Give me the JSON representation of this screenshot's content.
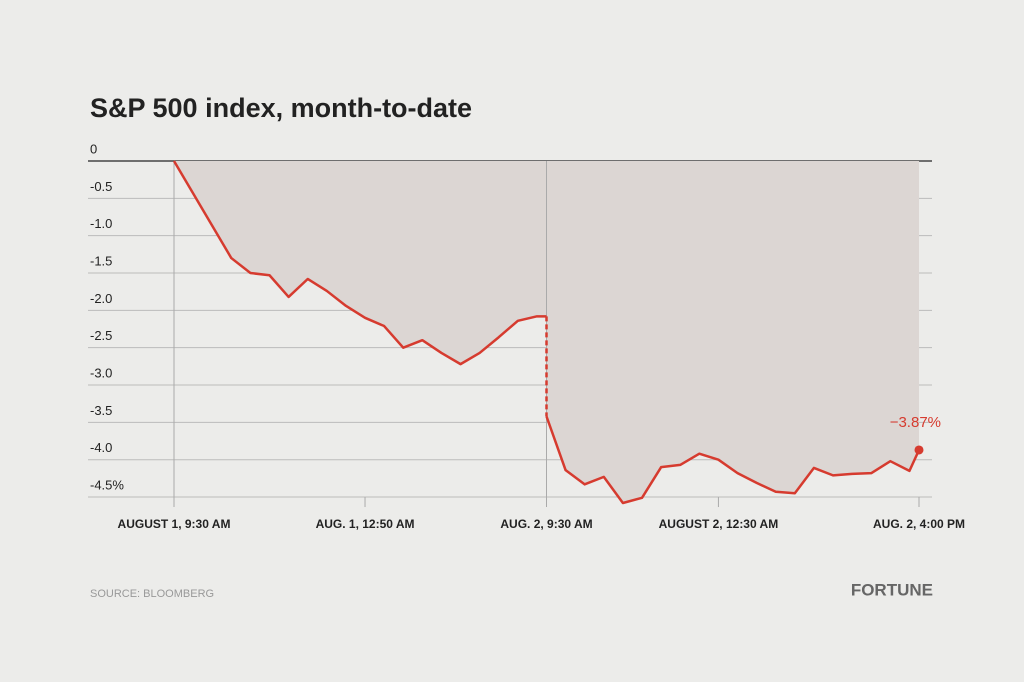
{
  "chart_data": {
    "type": "line",
    "title": "S&P 500 index, month-to-date",
    "source": "SOURCE: BLOOMBERG",
    "brand": "FORTUNE",
    "x": [
      0,
      60,
      80,
      100,
      120,
      140,
      160,
      180,
      200,
      220,
      240,
      260,
      280,
      300,
      320,
      340,
      360,
      380,
      390,
      390,
      410,
      430,
      450,
      470,
      490,
      510,
      530,
      550,
      570,
      590,
      610,
      630,
      650,
      670,
      690,
      710,
      730,
      750,
      770,
      780
    ],
    "xlim": [
      0,
      780
    ],
    "xticks": [
      {
        "value": 0,
        "label": "AUGUST 1, 9:30 AM"
      },
      {
        "value": 200,
        "label": "AUG. 1, 12:50 AM"
      },
      {
        "value": 390,
        "label": "AUG. 2, 9:30 AM"
      },
      {
        "value": 570,
        "label": "AUGUST 2, 12:30 AM"
      },
      {
        "value": 780,
        "label": "AUG. 2, 4:00 PM"
      }
    ],
    "series": [
      {
        "color": "#d63b2f",
        "fill": "#dcd6d3",
        "values": [
          0,
          -1.3,
          -1.5,
          -1.53,
          -1.82,
          -1.58,
          -1.74,
          -1.94,
          -2.1,
          -2.21,
          -2.5,
          -2.4,
          -2.57,
          -2.72,
          -2.57,
          -2.36,
          -2.14,
          -2.08,
          -2.08,
          -3.42,
          -4.14,
          -4.33,
          -4.23,
          -4.58,
          -4.51,
          -4.1,
          -4.07,
          -3.92,
          -4.0,
          -4.18,
          -4.31,
          -4.43,
          -4.45,
          -4.11,
          -4.21,
          -4.19,
          -4.18,
          -4.02,
          -4.15,
          -3.87
        ],
        "value_labels": [
          null,
          null,
          null,
          null,
          null,
          null,
          null,
          null,
          null,
          null,
          null,
          null,
          null,
          null,
          null,
          null,
          null,
          null,
          null,
          null,
          null,
          null,
          null,
          null,
          null,
          null,
          null,
          null,
          null,
          null,
          null,
          null,
          null,
          null,
          null,
          null,
          null,
          null,
          null,
          "−3.87%"
        ]
      }
    ],
    "ylim": [
      -4.6,
      0
    ],
    "yticks": [
      0,
      -0.5,
      {
        "value": -1,
        "label": "-1.0"
      },
      -1.5,
      {
        "value": -2,
        "label": "-2.0"
      },
      -2.5,
      {
        "value": -3,
        "label": "-3.0"
      },
      -3.5,
      {
        "value": -4,
        "label": "-4.0"
      },
      {
        "value": -4.5,
        "label": "-4.5%"
      }
    ],
    "grid": true
  }
}
